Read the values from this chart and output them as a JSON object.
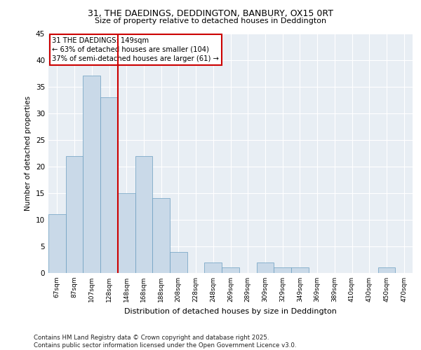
{
  "title1": "31, THE DAEDINGS, DEDDINGTON, BANBURY, OX15 0RT",
  "title2": "Size of property relative to detached houses in Deddington",
  "xlabel": "Distribution of detached houses by size in Deddington",
  "ylabel": "Number of detached properties",
  "categories": [
    "67sqm",
    "87sqm",
    "107sqm",
    "128sqm",
    "148sqm",
    "168sqm",
    "188sqm",
    "208sqm",
    "228sqm",
    "248sqm",
    "269sqm",
    "289sqm",
    "309sqm",
    "329sqm",
    "349sqm",
    "369sqm",
    "389sqm",
    "410sqm",
    "430sqm",
    "450sqm",
    "470sqm"
  ],
  "values": [
    11,
    22,
    37,
    33,
    15,
    22,
    14,
    4,
    0,
    2,
    1,
    0,
    2,
    1,
    1,
    0,
    0,
    0,
    0,
    1,
    0
  ],
  "bar_color": "#c9d9e8",
  "bar_edge_color": "#6a9ec0",
  "background_color": "#e8eef4",
  "annotation_text": "31 THE DAEDINGS: 149sqm\n← 63% of detached houses are smaller (104)\n37% of semi-detached houses are larger (61) →",
  "annotation_box_color": "#ffffff",
  "annotation_box_edge": "#cc0000",
  "vertical_line_color": "#cc0000",
  "footer": "Contains HM Land Registry data © Crown copyright and database right 2025.\nContains public sector information licensed under the Open Government Licence v3.0.",
  "ylim": [
    0,
    45
  ],
  "yticks": [
    0,
    5,
    10,
    15,
    20,
    25,
    30,
    35,
    40,
    45
  ]
}
